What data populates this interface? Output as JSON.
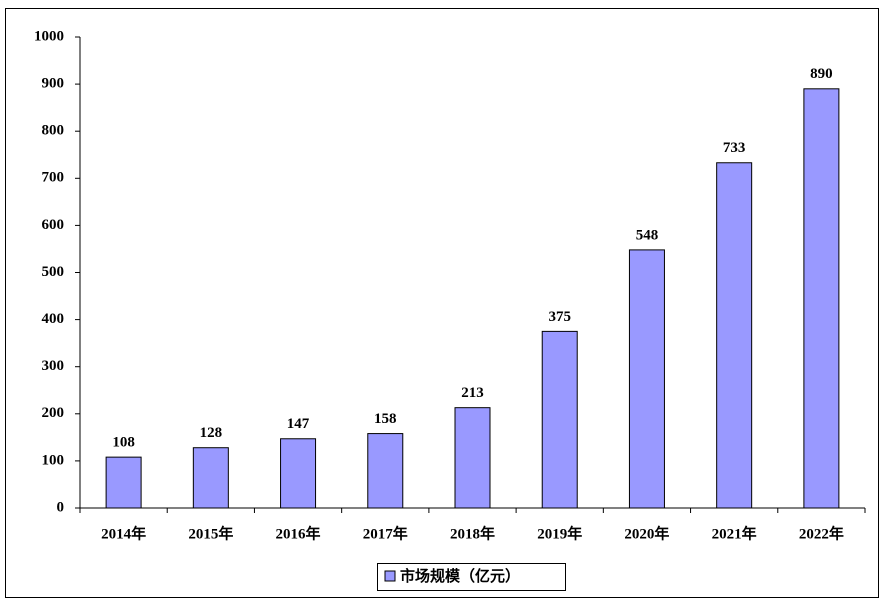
{
  "chart_data": {
    "type": "bar",
    "categories": [
      "2014年",
      "2015年",
      "2016年",
      "2017年",
      "2018年",
      "2019年",
      "2020年",
      "2021年",
      "2022年"
    ],
    "series": [
      {
        "name": "市场规模（亿元）",
        "color": "#9999ff",
        "values": [
          108,
          128,
          147,
          158,
          213,
          375,
          548,
          733,
          890
        ]
      }
    ],
    "ylim": [
      0,
      1000
    ],
    "yticks": [
      0,
      100,
      200,
      300,
      400,
      500,
      600,
      700,
      800,
      900,
      1000
    ],
    "grid": false,
    "legend": "bottom"
  }
}
